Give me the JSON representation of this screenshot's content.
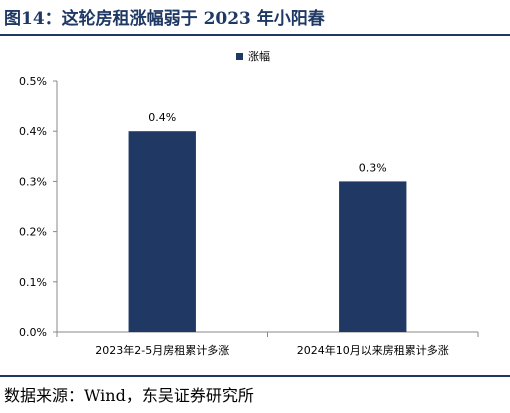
{
  "figure": {
    "title": "图14：这轮房租涨幅弱于 2023 年小阳春",
    "source": "数据来源：Wind，东吴证券研究所"
  },
  "chart_data": {
    "type": "bar",
    "categories": [
      "2023年2-5月房租累计多涨",
      "2024年10月以来房租累计多涨"
    ],
    "series": [
      {
        "name": "涨幅",
        "values": [
          0.4,
          0.3
        ],
        "labels": [
          "0.4%",
          "0.3%"
        ]
      }
    ],
    "yticks": [
      "0.0%",
      "0.1%",
      "0.2%",
      "0.3%",
      "0.4%",
      "0.5%"
    ],
    "ylim": [
      0,
      0.5
    ],
    "unit": "%",
    "legend_position": "top",
    "grid": false,
    "colors": {
      "bar": "#1f3864",
      "axis": "#888888",
      "text": "#000000"
    }
  }
}
